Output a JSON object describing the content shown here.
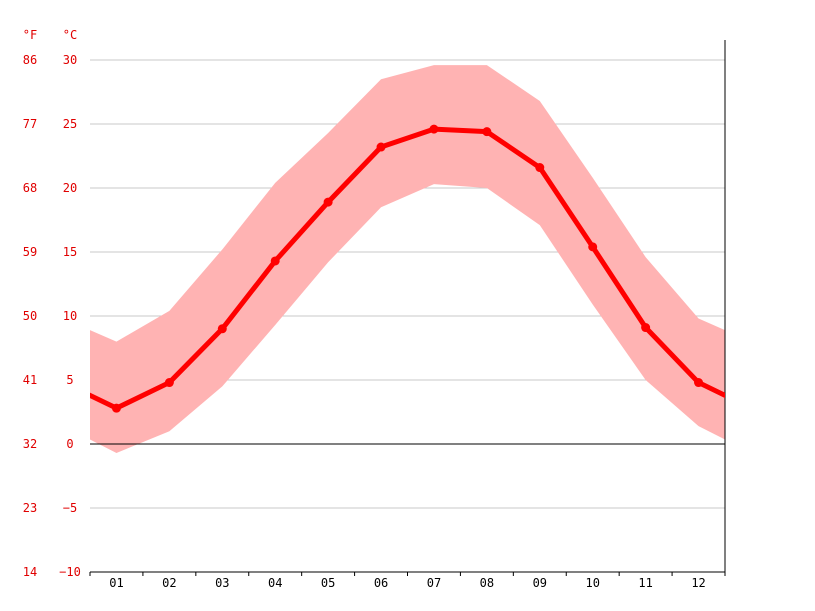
{
  "chart_data": {
    "type": "line",
    "title": "",
    "xlabel": "",
    "categories": [
      "01",
      "02",
      "03",
      "04",
      "05",
      "06",
      "07",
      "08",
      "09",
      "10",
      "11",
      "12"
    ],
    "y_unit_left_outer": "°F",
    "y_unit_left_inner": "°C",
    "ylim_c": [
      -10,
      30
    ],
    "c_ticks": [
      "30",
      "25",
      "20",
      "15",
      "10",
      "5",
      "0",
      "−5",
      "−10"
    ],
    "f_ticks": [
      "86",
      "77",
      "68",
      "59",
      "50",
      "41",
      "32",
      "23",
      "14"
    ],
    "grid": true,
    "series": [
      {
        "values": [
          2.8,
          4.8,
          9.0,
          14.3,
          18.9,
          23.2,
          24.6,
          24.4,
          21.6,
          15.4,
          9.1,
          4.8
        ]
      }
    ],
    "band": {
      "upper": [
        8.0,
        10.4,
        15.2,
        20.4,
        24.3,
        28.5,
        29.6,
        29.6,
        26.8,
        20.8,
        14.6,
        9.8
      ],
      "lower": [
        -0.7,
        1.0,
        4.5,
        9.3,
        14.2,
        18.5,
        20.3,
        20.0,
        17.1,
        10.9,
        5.0,
        1.4
      ]
    },
    "colors": {
      "line": "#ff0000",
      "band": "#ffb3b3",
      "tick_text": "#e00000"
    }
  }
}
